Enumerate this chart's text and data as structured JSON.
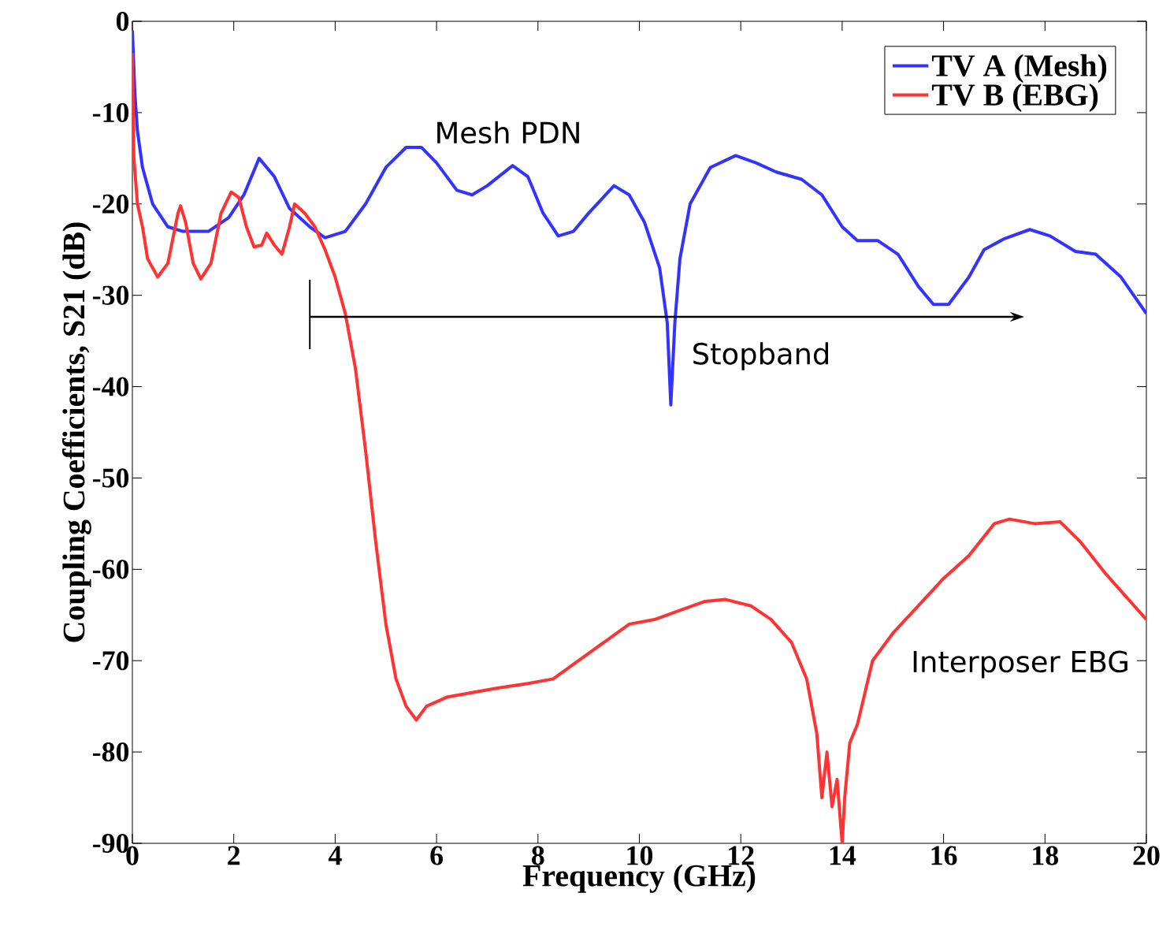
{
  "chart_data": {
    "type": "line",
    "xlabel": "Frequency (GHz)",
    "ylabel": "Coupling Coefficients, S21 (dB)",
    "xlim": [
      0,
      20
    ],
    "ylim": [
      -90,
      0
    ],
    "xticks": [
      0,
      2,
      4,
      6,
      8,
      10,
      12,
      14,
      16,
      18,
      20
    ],
    "yticks": [
      -90,
      -80,
      -70,
      -60,
      -50,
      -40,
      -30,
      -20,
      -10,
      0
    ],
    "grid": false,
    "legend": "top right",
    "line_style": "solid",
    "marker": "none",
    "series": [
      {
        "name": "TV A (Mesh)",
        "color": "#3333ff",
        "x": [
          0,
          0.05,
          0.1,
          0.2,
          0.4,
          0.7,
          1.0,
          1.5,
          1.9,
          2.2,
          2.5,
          2.8,
          3.1,
          3.5,
          3.8,
          4.2,
          4.6,
          5.0,
          5.4,
          5.7,
          6.0,
          6.4,
          6.7,
          7.0,
          7.5,
          7.8,
          8.1,
          8.4,
          8.7,
          9.0,
          9.5,
          9.8,
          10.1,
          10.4,
          10.55,
          10.62,
          10.7,
          10.8,
          11.0,
          11.4,
          11.9,
          12.3,
          12.7,
          13.2,
          13.6,
          14.0,
          14.3,
          14.7,
          15.1,
          15.5,
          15.8,
          16.1,
          16.5,
          16.8,
          17.2,
          17.7,
          18.1,
          18.6,
          19.0,
          19.5,
          20.0
        ],
        "values": [
          -1,
          -8,
          -12,
          -16,
          -20,
          -22.5,
          -23,
          -23,
          -21.5,
          -19,
          -15,
          -17,
          -20.5,
          -22.5,
          -23.7,
          -23,
          -20,
          -16,
          -13.8,
          -13.8,
          -15.5,
          -18.5,
          -19,
          -18,
          -15.8,
          -17,
          -21,
          -23.5,
          -23,
          -21,
          -18,
          -19,
          -22,
          -27,
          -33,
          -42,
          -33,
          -26,
          -20,
          -16,
          -14.7,
          -15.5,
          -16.5,
          -17.3,
          -19,
          -22.5,
          -24,
          -24,
          -25.5,
          -29,
          -31,
          -31,
          -28,
          -25,
          -23.8,
          -22.8,
          -23.5,
          -25.2,
          -25.5,
          -28,
          -32
        ]
      },
      {
        "name": "TV B (EBG)",
        "color": "#ff3333",
        "x": [
          0,
          0.03,
          0.1,
          0.2,
          0.3,
          0.5,
          0.7,
          0.9,
          0.95,
          1.05,
          1.2,
          1.35,
          1.55,
          1.75,
          1.95,
          2.1,
          2.25,
          2.4,
          2.55,
          2.65,
          2.8,
          2.95,
          3.1,
          3.2,
          3.4,
          3.6,
          3.8,
          4.0,
          4.2,
          4.4,
          4.6,
          4.8,
          5.0,
          5.2,
          5.4,
          5.6,
          5.8,
          6.2,
          6.7,
          7.2,
          7.8,
          8.3,
          8.8,
          9.3,
          9.8,
          10.3,
          10.8,
          11.3,
          11.7,
          12.2,
          12.6,
          13.0,
          13.3,
          13.5,
          13.6,
          13.7,
          13.8,
          13.9,
          14.0,
          14.05,
          14.15,
          14.3,
          14.6,
          15.0,
          15.5,
          16.0,
          16.5,
          17.0,
          17.3,
          17.8,
          18.3,
          18.7,
          19.2,
          19.6,
          20.0
        ],
        "values": [
          -3.5,
          -15,
          -20,
          -22.5,
          -26,
          -28,
          -26.5,
          -21,
          -20.2,
          -22,
          -26.5,
          -28.2,
          -26.5,
          -21,
          -18.7,
          -19.3,
          -22.5,
          -24.7,
          -24.5,
          -23.2,
          -24.5,
          -25.5,
          -22.5,
          -20,
          -21,
          -22.5,
          -25,
          -28,
          -32,
          -38,
          -47,
          -57,
          -66,
          -72,
          -75,
          -76.5,
          -75,
          -74,
          -73.5,
          -73,
          -72.5,
          -72,
          -70,
          -68,
          -66,
          -65.5,
          -64.5,
          -63.5,
          -63.3,
          -64,
          -65.5,
          -68,
          -72,
          -78,
          -85,
          -80,
          -86,
          -83,
          -90,
          -85,
          -79,
          -77,
          -70,
          -67,
          -64,
          -61,
          -58.5,
          -55,
          -54.5,
          -55,
          -54.8,
          -57,
          -60.5,
          -63,
          -65.5
        ]
      }
    ],
    "annotations": [
      "Mesh PDN",
      "Stopband",
      "Interposer EBG"
    ],
    "ref_lines": [
      {
        "axis": "x",
        "value": 3.5,
        "color": "#000000"
      }
    ]
  }
}
